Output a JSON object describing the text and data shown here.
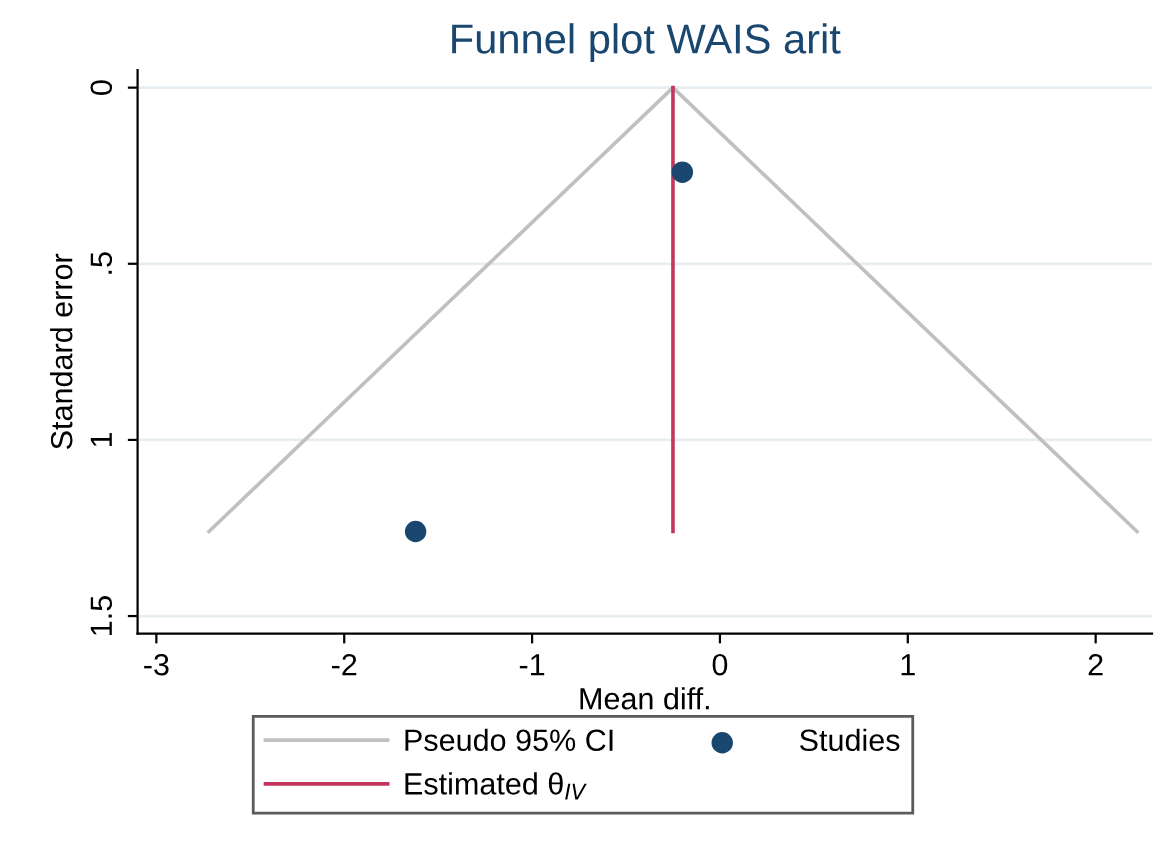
{
  "chart_data": {
    "type": "scatter",
    "title": "Funnel plot WAIS arit",
    "xlabel": "Mean diff.",
    "ylabel": "Standard error",
    "xlim": [
      -3.1,
      2.3
    ],
    "xticks": [
      -3,
      -2,
      -1,
      0,
      1,
      2
    ],
    "ylim": [
      1.55,
      -0.05
    ],
    "yticks": [
      0,
      {
        "value": 0.5,
        "label": ".5"
      },
      1,
      1.5
    ],
    "grid": "y",
    "legend": "bottom",
    "series": [
      {
        "name": "Pseudo 95% CI",
        "type": "line",
        "color": "#c0c0c0",
        "x": [
          -2.72,
          -0.25,
          2.22
        ],
        "values": [
          1.26,
          0,
          1.26
        ]
      },
      {
        "name": "Estimated θ$_{IV}$",
        "type": "line",
        "color": "#c4365c",
        "x": [
          -0.25,
          -0.25
        ],
        "values": [
          0,
          1.26
        ]
      },
      {
        "name": "Studies",
        "color": "#1a476f",
        "x": [
          -0.2,
          -1.62
        ],
        "values": [
          0.24,
          1.26
        ]
      }
    ]
  }
}
